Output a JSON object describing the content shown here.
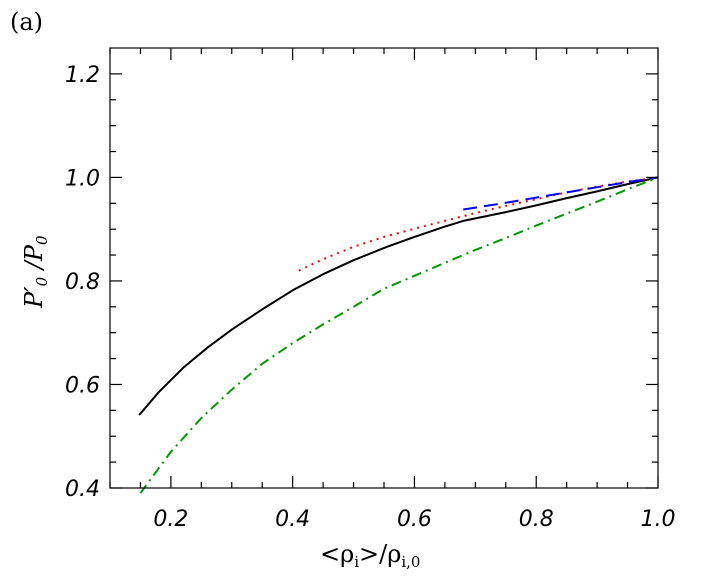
{
  "panel_label": "(a)",
  "chart_data": {
    "type": "line",
    "xlabel": "<ρi>/ρi,0",
    "ylabel": "P'0/P0",
    "xlim": [
      0.1,
      1.0
    ],
    "ylim": [
      0.4,
      1.25
    ],
    "xticks": [
      0.2,
      0.4,
      0.6,
      0.8,
      1.0
    ],
    "xtick_labels": [
      "0.2",
      "0.4",
      "0.6",
      "0.8",
      "1.0"
    ],
    "yticks": [
      0.4,
      0.6,
      0.8,
      1.0,
      1.2
    ],
    "ytick_labels": [
      "0.4",
      "0.6",
      "0.8",
      "1.0",
      "1.2"
    ],
    "grid": false,
    "series": [
      {
        "style": "solid",
        "color": "#000000",
        "x": [
          0.148,
          0.18,
          0.22,
          0.26,
          0.3,
          0.35,
          0.4,
          0.45,
          0.5,
          0.555,
          0.6,
          0.65,
          0.68,
          0.75,
          0.8,
          0.85,
          0.9,
          0.95,
          1.0
        ],
        "y": [
          0.541,
          0.585,
          0.632,
          0.671,
          0.706,
          0.745,
          0.782,
          0.813,
          0.84,
          0.866,
          0.885,
          0.905,
          0.916,
          0.933,
          0.946,
          0.96,
          0.973,
          0.987,
          1.0
        ]
      },
      {
        "style": "dotted",
        "color": "#ff0000",
        "x": [
          0.41,
          0.45,
          0.5,
          0.55,
          0.6,
          0.65,
          0.7,
          0.75,
          0.8,
          0.85,
          0.9,
          0.95,
          1.0
        ],
        "y": [
          0.82,
          0.842,
          0.866,
          0.885,
          0.901,
          0.916,
          0.931,
          0.945,
          0.958,
          0.971,
          0.982,
          0.992,
          1.0
        ]
      },
      {
        "style": "dashed",
        "color": "#0000ff",
        "x": [
          0.68,
          0.75,
          0.8,
          0.85,
          0.9,
          0.95,
          1.0
        ],
        "y": [
          0.938,
          0.951,
          0.961,
          0.971,
          0.981,
          0.991,
          1.0
        ]
      },
      {
        "style": "dashdot",
        "color": "#009900",
        "x": [
          0.15,
          0.2,
          0.25,
          0.3,
          0.35,
          0.4,
          0.45,
          0.5,
          0.55,
          0.6,
          0.65,
          0.7,
          0.75,
          0.8,
          0.85,
          0.9,
          0.95,
          1.0
        ],
        "y": [
          0.39,
          0.47,
          0.535,
          0.59,
          0.64,
          0.68,
          0.716,
          0.75,
          0.785,
          0.81,
          0.835,
          0.86,
          0.883,
          0.907,
          0.93,
          0.953,
          0.977,
          1.0
        ]
      }
    ]
  }
}
